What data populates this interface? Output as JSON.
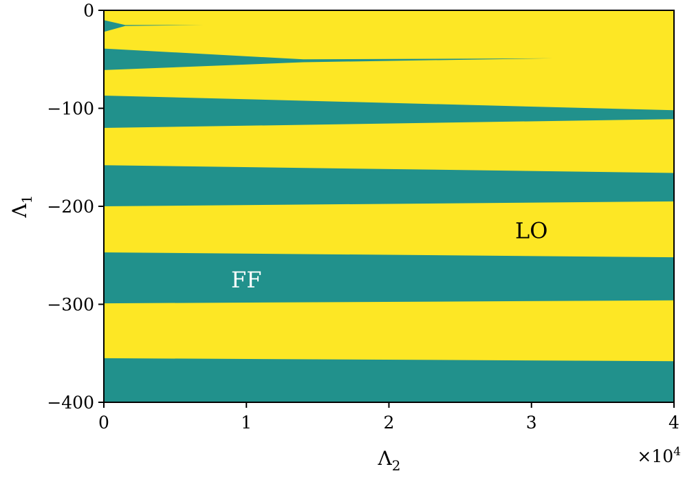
{
  "chart_data": {
    "type": "heatmap",
    "title": "",
    "xlabel": "Λ",
    "xlabel_subscript": "2",
    "ylabel": "Λ",
    "ylabel_subscript": "1",
    "x_offset_text": "×10",
    "x_offset_exponent": "4",
    "xlim": [
      0,
      40000
    ],
    "ylim": [
      -400,
      0
    ],
    "xticks": [
      0,
      10000,
      20000,
      30000,
      40000
    ],
    "xtick_labels": [
      "0",
      "1",
      "2",
      "3",
      "4"
    ],
    "yticks": [
      0,
      -100,
      -200,
      -300,
      -400
    ],
    "ytick_labels": [
      "0",
      "−100",
      "−200",
      "−300",
      "−400"
    ],
    "grid": false,
    "colors": {
      "LO": "#fde725",
      "FF": "#21918c"
    },
    "background_region": "LO",
    "ff_regions": [
      {
        "upper": [
          [
            0,
            -10
          ],
          [
            1500,
            -15
          ],
          [
            7000,
            -15
          ],
          [
            1500,
            -16
          ],
          [
            0,
            -22
          ]
        ]
      },
      {
        "upper": [
          [
            0,
            -39
          ],
          [
            14000,
            -50
          ],
          [
            31500,
            -49
          ]
        ],
        "lower": [
          [
            0,
            -61
          ],
          [
            14000,
            -53
          ],
          [
            31500,
            -49
          ]
        ]
      },
      {
        "upper": [
          [
            0,
            -87
          ],
          [
            40000,
            -102
          ]
        ],
        "lower": [
          [
            0,
            -120
          ],
          [
            40000,
            -111
          ]
        ]
      },
      {
        "upper": [
          [
            0,
            -158
          ],
          [
            40000,
            -166
          ]
        ],
        "lower": [
          [
            0,
            -200
          ],
          [
            40000,
            -195
          ]
        ]
      },
      {
        "upper": [
          [
            0,
            -247
          ],
          [
            40000,
            -252
          ]
        ],
        "lower": [
          [
            0,
            -299
          ],
          [
            40000,
            -296
          ]
        ]
      },
      {
        "upper": [
          [
            0,
            -355
          ],
          [
            40000,
            -358
          ]
        ],
        "lower": [
          [
            0,
            -400
          ],
          [
            40000,
            -400
          ]
        ]
      }
    ],
    "annotations": [
      {
        "text": "LO",
        "x": 30000,
        "y": -225,
        "color": "#000000"
      },
      {
        "text": "FF",
        "x": 10000,
        "y": -275,
        "color": "#ffffff"
      }
    ]
  }
}
